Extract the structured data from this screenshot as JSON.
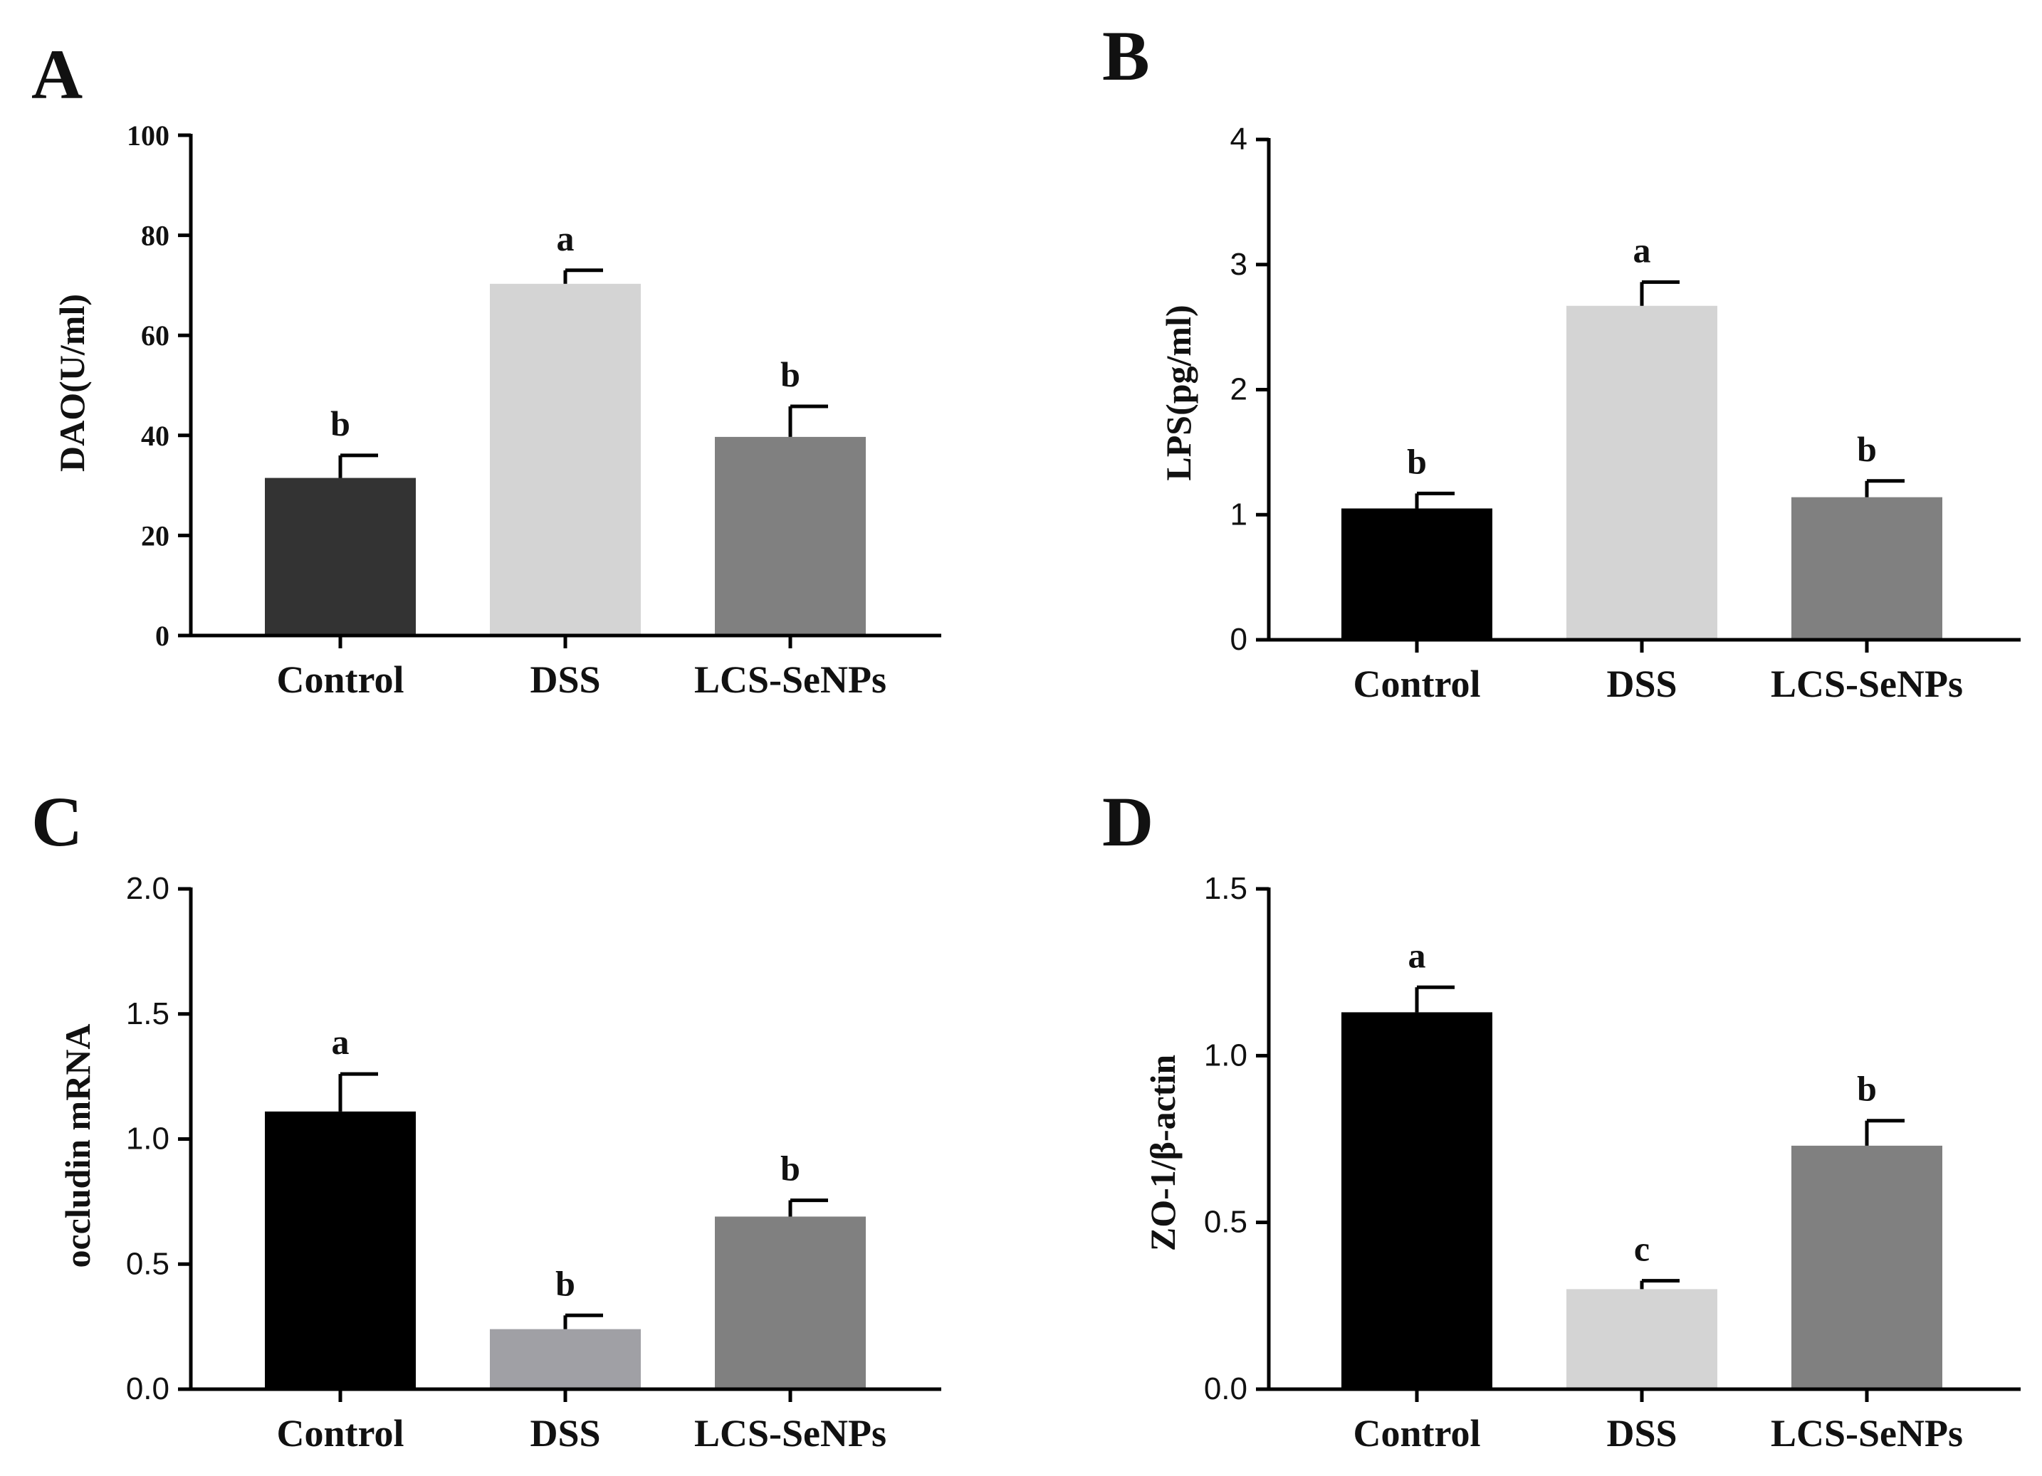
{
  "figure": {
    "background": "#ffffff"
  },
  "chart_data": [
    {
      "panel": "A",
      "type": "bar",
      "categories": [
        "Control",
        "DSS",
        "LCS-SeNPs"
      ],
      "values": [
        31.5,
        70.3,
        39.7
      ],
      "errors": [
        4.5,
        2.7,
        6.1
      ],
      "significance": [
        "b",
        "a",
        "b"
      ],
      "colors": [
        "#333333",
        "#d4d4d4",
        "#808080"
      ],
      "ylabel": "DAO(U/ml)",
      "ylim": [
        0,
        100
      ],
      "yticks": [
        0,
        20,
        40,
        60,
        80,
        100
      ],
      "ytick_labels": [
        "0",
        "20",
        "40",
        "60",
        "80",
        "100"
      ],
      "tick_font": "serif"
    },
    {
      "panel": "B",
      "type": "bar",
      "categories": [
        "Control",
        "DSS",
        "LCS-SeNPs"
      ],
      "values": [
        1.05,
        2.67,
        1.14
      ],
      "errors": [
        0.12,
        0.19,
        0.13
      ],
      "significance": [
        "b",
        "a",
        "b"
      ],
      "colors": [
        "#000000",
        "#d4d4d4",
        "#808080"
      ],
      "ylabel": "LPS(pg/ml)",
      "ylim": [
        0,
        4
      ],
      "yticks": [
        0,
        1,
        2,
        3,
        4
      ],
      "ytick_labels": [
        "0",
        "1",
        "2",
        "3",
        "4"
      ],
      "tick_font": "sans"
    },
    {
      "panel": "C",
      "type": "bar",
      "categories": [
        "Control",
        "DSS",
        "LCS-SeNPs"
      ],
      "values": [
        1.11,
        0.24,
        0.69
      ],
      "errors": [
        0.15,
        0.055,
        0.065
      ],
      "significance": [
        "a",
        "b",
        "b"
      ],
      "colors": [
        "#000000",
        "#a0a0a5",
        "#808080"
      ],
      "ylabel": "occludin mRNA",
      "ylim": [
        0,
        2.0
      ],
      "yticks": [
        0,
        0.5,
        1.0,
        1.5,
        2.0
      ],
      "ytick_labels": [
        "0.0",
        "0.5",
        "1.0",
        "1.5",
        "2.0"
      ],
      "tick_font": "sans"
    },
    {
      "panel": "D",
      "type": "bar",
      "categories": [
        "Control",
        "DSS",
        "LCS-SeNPs"
      ],
      "values": [
        1.13,
        0.3,
        0.73
      ],
      "errors": [
        0.075,
        0.025,
        0.075
      ],
      "significance": [
        "a",
        "c",
        "b"
      ],
      "colors": [
        "#000000",
        "#d4d4d4",
        "#808080"
      ],
      "ylabel": "ZO-1/β-actin",
      "ylim": [
        0,
        1.5
      ],
      "yticks": [
        0,
        0.5,
        1.0,
        1.5
      ],
      "ytick_labels": [
        "0.0",
        "0.5",
        "1.0",
        "1.5"
      ],
      "tick_font": "sans"
    }
  ]
}
